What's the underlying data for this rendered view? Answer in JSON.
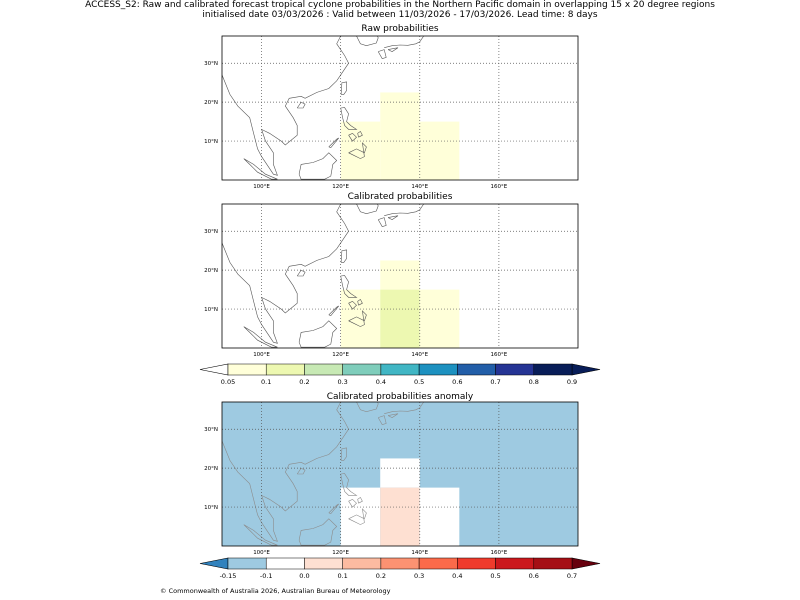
{
  "header": {
    "title_line1": "ACCESS_S2: Raw and calibrated forecast tropical cyclone probabilities in the Northern Pacific domain in overlapping 15 x 20 degree regions",
    "title_line2": "initialised date 03/03/2026 :  Valid between 11/03/2026 - 17/03/2026. Lead time: 8 days"
  },
  "footer": "© Commonwealth of Australia 2026, Australian Bureau of Meteorology",
  "chart_data": [
    {
      "type": "heatmap",
      "title": "Raw probabilities",
      "xlim": [
        90,
        180
      ],
      "ylim": [
        0,
        37
      ],
      "x_ticks": [
        100,
        120,
        140,
        160
      ],
      "x_tick_labels": [
        "100°E",
        "120°E",
        "140°E",
        "160°E"
      ],
      "y_ticks": [
        10,
        20,
        30
      ],
      "y_tick_labels": [
        "10°N",
        "20°N",
        "30°N"
      ],
      "grid": true,
      "cells": [
        {
          "lon": [
            120,
            130
          ],
          "lat": [
            0,
            15
          ],
          "value": 0.07
        },
        {
          "lon": [
            130,
            140
          ],
          "lat": [
            0,
            22.5
          ],
          "value": 0.08
        },
        {
          "lon": [
            140,
            150
          ],
          "lat": [
            0,
            15
          ],
          "value": 0.07
        }
      ]
    },
    {
      "type": "heatmap",
      "title": "Calibrated probabilities",
      "xlim": [
        90,
        180
      ],
      "ylim": [
        0,
        37
      ],
      "x_ticks": [
        100,
        120,
        140,
        160
      ],
      "x_tick_labels": [
        "100°E",
        "120°E",
        "140°E",
        "160°E"
      ],
      "y_ticks": [
        10,
        20,
        30
      ],
      "y_tick_labels": [
        "10°N",
        "20°N",
        "30°N"
      ],
      "grid": true,
      "cells": [
        {
          "lon": [
            120,
            130
          ],
          "lat": [
            0,
            15
          ],
          "value": 0.07
        },
        {
          "lon": [
            130,
            140
          ],
          "lat": [
            15,
            22.5
          ],
          "value": 0.07
        },
        {
          "lon": [
            130,
            140
          ],
          "lat": [
            0,
            15
          ],
          "value": 0.12
        },
        {
          "lon": [
            140,
            150
          ],
          "lat": [
            0,
            15
          ],
          "value": 0.07
        }
      ]
    },
    {
      "type": "heatmap",
      "title": "Calibrated probabilities anomaly",
      "xlim": [
        90,
        180
      ],
      "ylim": [
        0,
        37
      ],
      "x_ticks": [
        100,
        120,
        140,
        160
      ],
      "x_tick_labels": [
        "100°E",
        "120°E",
        "140°E",
        "160°E"
      ],
      "y_ticks": [
        10,
        20,
        30
      ],
      "y_tick_labels": [
        "10°N",
        "20°N",
        "30°N"
      ],
      "grid": true,
      "background_value": -0.15,
      "cells": [
        {
          "lon": [
            120,
            130
          ],
          "lat": [
            0,
            15
          ],
          "value": -0.08
        },
        {
          "lon": [
            130,
            140
          ],
          "lat": [
            15,
            22.5
          ],
          "value": -0.08
        },
        {
          "lon": [
            130,
            140
          ],
          "lat": [
            0,
            15
          ],
          "value": 0.0
        },
        {
          "lon": [
            140,
            150
          ],
          "lat": [
            0,
            15
          ],
          "value": -0.08
        }
      ]
    }
  ],
  "colorbars": {
    "probability": {
      "levels": [
        "0.05",
        "0.1",
        "0.2",
        "0.3",
        "0.4",
        "0.5",
        "0.6",
        "0.7",
        "0.8",
        "0.9"
      ],
      "colors": [
        "#ffffd9",
        "#edf8b1",
        "#c7e9b4",
        "#7fcdbb",
        "#41b6c4",
        "#1d91c0",
        "#225ea8",
        "#253494",
        "#081d58"
      ],
      "under_color": "#ffffff",
      "over_color": "#081d58"
    },
    "anomaly": {
      "levels": [
        "-0.15",
        "-0.1",
        "0.0",
        "0.1",
        "0.2",
        "0.3",
        "0.4",
        "0.5",
        "0.6",
        "0.7"
      ],
      "colors": [
        "#9ecae1",
        "#ffffff",
        "#fee0d2",
        "#fcbba1",
        "#fc9272",
        "#fb6a4a",
        "#ef3b2c",
        "#cb181d",
        "#a50f15"
      ],
      "under_color": "#3182bd",
      "over_color": "#67000d"
    }
  }
}
